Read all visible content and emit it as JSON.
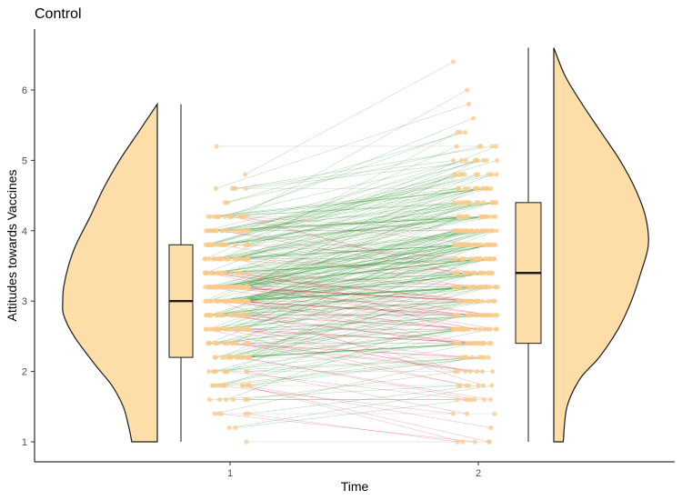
{
  "chart_data": {
    "type": "raincloud",
    "title": "Control",
    "xlabel": "Time",
    "ylabel": "Attitudes towards Vaccines",
    "x_categories": [
      "1",
      "2"
    ],
    "ylim": [
      0.7,
      6.85
    ],
    "y_ticks": [
      1,
      2,
      3,
      4,
      5,
      6
    ],
    "grid": false,
    "legend": "none",
    "colors": {
      "fill": "#fddea8",
      "outline": "#1a1a1a",
      "point": "#f9c98a",
      "line_increase": "#1a8a1a",
      "line_decrease": "#d02040",
      "line_flat": "#888888"
    },
    "boxplots": [
      {
        "time": "1",
        "min": 1.0,
        "q1": 2.2,
        "median": 3.0,
        "q3": 3.8,
        "max": 5.8
      },
      {
        "time": "2",
        "min": 1.0,
        "q1": 2.4,
        "median": 3.4,
        "q3": 4.4,
        "max": 6.6
      }
    ],
    "densities": [
      {
        "time": "1",
        "side": "left",
        "y": [
          1.0,
          1.2,
          1.5,
          1.8,
          2.1,
          2.5,
          2.8,
          3.0,
          3.2,
          3.5,
          3.8,
          4.2,
          4.6,
          5.0,
          5.4,
          5.8
        ],
        "density": [
          0.27,
          0.3,
          0.36,
          0.48,
          0.66,
          0.88,
          0.99,
          1.0,
          0.99,
          0.94,
          0.86,
          0.71,
          0.57,
          0.4,
          0.2,
          0.0
        ]
      },
      {
        "time": "2",
        "side": "right",
        "y": [
          1.0,
          1.5,
          1.9,
          2.2,
          2.6,
          3.0,
          3.4,
          3.8,
          4.2,
          4.6,
          5.0,
          5.4,
          5.8,
          6.2,
          6.6
        ],
        "density": [
          0.1,
          0.14,
          0.28,
          0.48,
          0.68,
          0.82,
          0.92,
          1.0,
          0.97,
          0.86,
          0.7,
          0.5,
          0.3,
          0.12,
          0.0
        ]
      }
    ]
  }
}
